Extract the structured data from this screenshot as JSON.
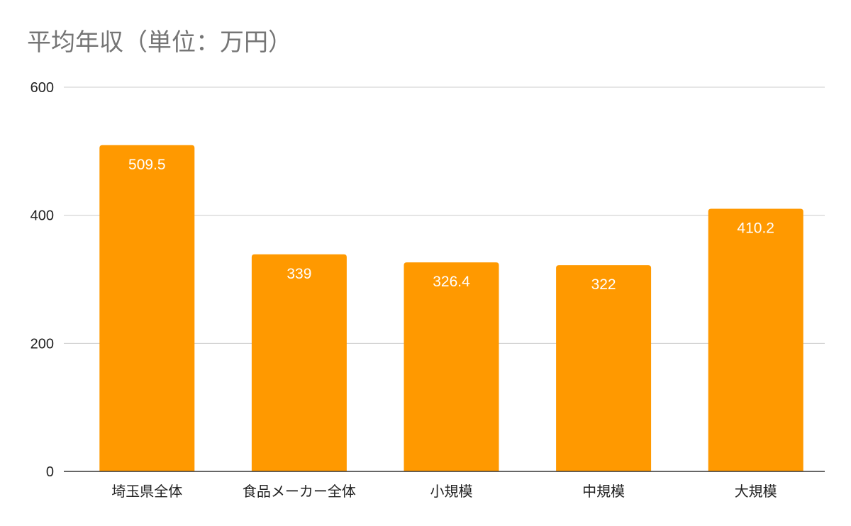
{
  "chart_data": {
    "type": "bar",
    "title": "平均年収（単位：万円）",
    "categories": [
      "埼玉県全体",
      "食品メーカー全体",
      "小規模",
      "中規模",
      "大規模"
    ],
    "values": [
      509.5,
      339,
      326.4,
      322,
      410.2
    ],
    "value_labels": [
      "509.5",
      "339",
      "326.4",
      "322",
      "410.2"
    ],
    "ylim": [
      0,
      600
    ],
    "yticks": [
      0,
      200,
      400,
      600
    ],
    "grid": true,
    "bar_color": "#ff9900",
    "grid_color": "#cccccc",
    "axis_color": "#333333",
    "legend": "none"
  }
}
